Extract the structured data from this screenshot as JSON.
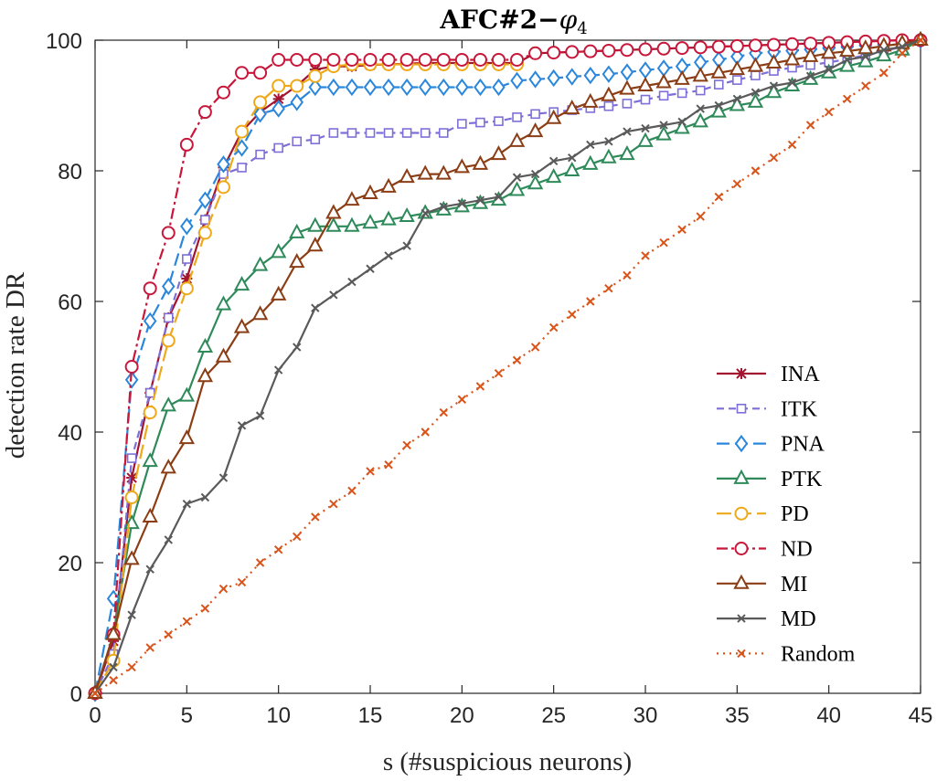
{
  "chart_data": {
    "type": "line",
    "title_main": "AFC#2",
    "title_dash": "−",
    "title_symbol": "φ",
    "title_subscript": "4",
    "xlabel": "s (#suspicious neurons)",
    "ylabel": "detection rate DR",
    "xlim": [
      0,
      45
    ],
    "ylim": [
      0,
      100
    ],
    "xticks": [
      0,
      5,
      10,
      15,
      20,
      25,
      30,
      35,
      40,
      45
    ],
    "yticks": [
      0,
      20,
      40,
      60,
      80,
      100
    ],
    "grid": false,
    "legend_position": "bottom-right",
    "series": [
      {
        "name": "INA",
        "color": "#a2142f",
        "dash": "",
        "marker": "star",
        "x": [
          0,
          1,
          2,
          3,
          4,
          5,
          6,
          7,
          8,
          9,
          10,
          11,
          12,
          13,
          14,
          15,
          16,
          17,
          18,
          19,
          20,
          21,
          22,
          23,
          24,
          25,
          26,
          27,
          28,
          29,
          30,
          31,
          32,
          33,
          34,
          35,
          36,
          37,
          38,
          39,
          40,
          41,
          42,
          43,
          44,
          45
        ],
        "y": [
          0,
          8,
          33,
          46,
          57.5,
          63.5,
          72.5,
          80.5,
          86,
          89,
          91,
          93,
          95.5,
          96,
          96,
          96.2,
          96.3,
          96.4,
          96.5,
          96.5,
          96.5,
          96.5,
          96.5,
          96.5,
          98,
          98.1,
          98.2,
          98.3,
          98.4,
          98.5,
          98.6,
          98.7,
          98.8,
          98.9,
          99,
          99.1,
          99.2,
          99.3,
          99.4,
          99.5,
          99.6,
          99.7,
          99.8,
          99.9,
          100,
          100
        ]
      },
      {
        "name": "ITK",
        "color": "#7e6fd8",
        "dash": "8,5",
        "marker": "square",
        "x": [
          0,
          1,
          2,
          3,
          4,
          5,
          6,
          7,
          8,
          9,
          10,
          11,
          12,
          13,
          14,
          15,
          16,
          17,
          18,
          19,
          20,
          21,
          22,
          23,
          24,
          25,
          26,
          27,
          28,
          29,
          30,
          31,
          32,
          33,
          34,
          35,
          36,
          37,
          38,
          39,
          40,
          41,
          42,
          43,
          44,
          45
        ],
        "y": [
          0,
          6,
          36,
          46,
          57.5,
          66.5,
          72.5,
          79.5,
          80.5,
          82.5,
          83.5,
          84.5,
          84.8,
          85.8,
          85.8,
          85.8,
          85.8,
          85.8,
          85.8,
          85.8,
          87.2,
          87.4,
          87.6,
          88.2,
          88.7,
          89,
          89.3,
          89.6,
          89.9,
          90.3,
          90.9,
          91.5,
          91.9,
          92.3,
          93.2,
          93.9,
          94.6,
          95.3,
          95.8,
          96.2,
          96.6,
          97.1,
          97.7,
          98.3,
          99,
          100
        ]
      },
      {
        "name": "PNA",
        "color": "#2b87dc",
        "dash": "14,6",
        "marker": "diamond",
        "x": [
          0,
          1,
          2,
          3,
          4,
          5,
          6,
          7,
          8,
          9,
          10,
          11,
          12,
          13,
          14,
          15,
          16,
          17,
          18,
          19,
          20,
          21,
          22,
          23,
          24,
          25,
          26,
          27,
          28,
          29,
          30,
          31,
          32,
          33,
          34,
          35,
          36,
          37,
          38,
          39,
          40,
          41,
          42,
          43,
          44,
          45
        ],
        "y": [
          0,
          14.5,
          48,
          57,
          62.3,
          71.5,
          75.5,
          81,
          83.5,
          88.7,
          89.5,
          90.5,
          92.8,
          92.8,
          92.8,
          92.8,
          92.8,
          92.8,
          92.8,
          92.8,
          92.8,
          92.8,
          92.8,
          93.8,
          94,
          94.2,
          94.4,
          94.6,
          94.8,
          95.1,
          95.4,
          95.7,
          96,
          96.6,
          97,
          97.5,
          98,
          98.2,
          98.4,
          98.6,
          98.8,
          99,
          99.2,
          99.4,
          99.7,
          100
        ]
      },
      {
        "name": "PTK",
        "color": "#2f8a5a",
        "dash": "",
        "marker": "triangle",
        "x": [
          0,
          1,
          2,
          3,
          4,
          5,
          6,
          7,
          8,
          9,
          10,
          11,
          12,
          13,
          14,
          15,
          16,
          17,
          18,
          19,
          20,
          21,
          22,
          23,
          24,
          25,
          26,
          27,
          28,
          29,
          30,
          31,
          32,
          33,
          34,
          35,
          36,
          37,
          38,
          39,
          40,
          41,
          42,
          43,
          44,
          45
        ],
        "y": [
          0,
          9,
          26,
          35.5,
          44,
          45.5,
          53,
          59.5,
          62.5,
          65.5,
          67.5,
          70.5,
          71.5,
          71.5,
          71.5,
          72,
          72.5,
          73,
          73.5,
          74,
          74.5,
          75,
          75.5,
          77,
          78,
          79,
          80,
          81,
          82,
          82.5,
          84.5,
          85.5,
          86.5,
          87.5,
          89,
          90,
          90.5,
          92,
          93,
          94,
          95,
          96,
          96.7,
          97.6,
          98.5,
          100
        ]
      },
      {
        "name": "PD",
        "color": "#eda91a",
        "dash": "16,6",
        "marker": "circle",
        "x": [
          0,
          1,
          2,
          3,
          4,
          5,
          6,
          7,
          8,
          9,
          10,
          11,
          12,
          13,
          14,
          15,
          16,
          17,
          18,
          19,
          20,
          21,
          22,
          23
        ],
        "y": [
          0,
          5,
          30,
          43,
          54,
          62,
          70.5,
          77.5,
          86,
          90.5,
          93,
          93,
          94.5,
          96,
          96.3,
          96.3,
          96.3,
          96.3,
          96.3,
          96.3,
          96.3,
          96.3,
          96.3,
          96.3
        ]
      },
      {
        "name": "ND",
        "color": "#c8173a",
        "dash": "12,4,3,4",
        "marker": "circle",
        "x": [
          0,
          1,
          2,
          3,
          4,
          5,
          6,
          7,
          8,
          9,
          10,
          11,
          12,
          13,
          14,
          15,
          16,
          17,
          18,
          19,
          20,
          21,
          22,
          23,
          24,
          25,
          26,
          27,
          28,
          29,
          30,
          31,
          32,
          33,
          34,
          35,
          36,
          37,
          38,
          39,
          40,
          41,
          42,
          43,
          44,
          45
        ],
        "y": [
          0,
          9,
          50,
          62,
          70.5,
          84,
          89,
          92,
          95,
          95,
          97,
          97,
          97,
          97,
          97,
          97,
          97,
          97,
          97,
          97,
          97,
          97,
          97,
          97,
          98,
          98.1,
          98.2,
          98.3,
          98.4,
          98.5,
          98.6,
          98.7,
          98.8,
          98.9,
          99,
          99.1,
          99.2,
          99.3,
          99.4,
          99.5,
          99.6,
          99.7,
          99.8,
          99.9,
          100,
          100
        ]
      },
      {
        "name": "MI",
        "color": "#8b3e15",
        "dash": "",
        "marker": "triangle",
        "x": [
          0,
          1,
          2,
          3,
          4,
          5,
          6,
          7,
          8,
          9,
          10,
          11,
          12,
          13,
          14,
          15,
          16,
          17,
          18,
          19,
          20,
          21,
          22,
          23,
          24,
          25,
          26,
          27,
          28,
          29,
          30,
          31,
          32,
          33,
          34,
          35,
          36,
          37,
          38,
          39,
          40,
          41,
          42,
          43,
          44,
          45
        ],
        "y": [
          0,
          9,
          20.5,
          27,
          34.5,
          39,
          48.5,
          51.5,
          56,
          58,
          61,
          66,
          68.5,
          73.5,
          75.5,
          76.5,
          77.5,
          79,
          79.5,
          79.5,
          80.5,
          81,
          82.5,
          84.5,
          86,
          88,
          89.5,
          90.5,
          91.5,
          92.5,
          93,
          93.5,
          94,
          94.5,
          95,
          95.5,
          96,
          96.5,
          97,
          97.5,
          98,
          98.3,
          98.7,
          99.1,
          99.5,
          100
        ]
      },
      {
        "name": "MD",
        "color": "#5a5a5a",
        "dash": "",
        "marker": "x",
        "x": [
          0,
          1,
          2,
          3,
          4,
          5,
          6,
          7,
          8,
          9,
          10,
          11,
          12,
          13,
          14,
          15,
          16,
          17,
          18,
          19,
          20,
          21,
          22,
          23,
          24,
          25,
          26,
          27,
          28,
          29,
          30,
          31,
          32,
          33,
          34,
          35,
          36,
          37,
          38,
          39,
          40,
          41,
          42,
          43,
          44,
          45
        ],
        "y": [
          0,
          4,
          12,
          19,
          23.5,
          29,
          30,
          33,
          41,
          42.5,
          49.5,
          53,
          59,
          61,
          63,
          65,
          67,
          68.5,
          73.5,
          74.5,
          75,
          75.5,
          76,
          79,
          79.5,
          81.5,
          82,
          84,
          84.5,
          86,
          86.5,
          87,
          87.5,
          89.5,
          90,
          91,
          92,
          93,
          93.5,
          94.5,
          95.5,
          97,
          97.5,
          98.5,
          99,
          100
        ]
      },
      {
        "name": "Random",
        "color": "#d9541a",
        "dash": "2,5",
        "marker": "x",
        "x": [
          0,
          1,
          2,
          3,
          4,
          5,
          6,
          7,
          8,
          9,
          10,
          11,
          12,
          13,
          14,
          15,
          16,
          17,
          18,
          19,
          20,
          21,
          22,
          23,
          24,
          25,
          26,
          27,
          28,
          29,
          30,
          31,
          32,
          33,
          34,
          35,
          36,
          37,
          38,
          39,
          40,
          41,
          42,
          43,
          44,
          45
        ],
        "y": [
          0,
          2,
          4,
          7,
          9,
          11,
          13,
          16,
          17,
          20,
          22,
          24,
          27,
          29,
          31,
          34,
          35,
          38,
          40,
          43,
          45,
          47,
          49,
          51,
          53,
          56,
          58,
          60,
          62,
          64,
          67,
          69,
          71,
          73,
          76,
          78,
          80,
          82,
          84,
          87,
          89,
          91,
          93,
          95,
          98,
          100
        ]
      }
    ]
  }
}
